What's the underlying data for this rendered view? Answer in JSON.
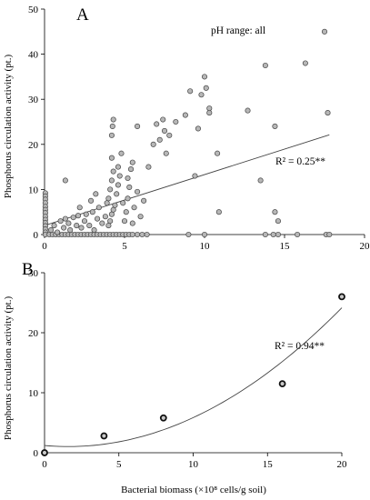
{
  "chart_data": [
    {
      "type": "scatter",
      "panel_label": "A",
      "annotation": "pH range: all",
      "r2_label": "R² = 0.25**",
      "ylabel": "Phosphorus circulation activity (pt.)",
      "xlabel": "",
      "xlim": [
        0,
        20
      ],
      "ylim": [
        0,
        50
      ],
      "xticks": [
        0,
        5,
        10,
        15,
        20
      ],
      "yticks": [
        0,
        10,
        20,
        30,
        40,
        50
      ],
      "xtick_labels": [
        "0",
        "5",
        "10",
        "15",
        "20"
      ],
      "ytick_labels": [
        "0",
        "10",
        "20",
        "30",
        "40",
        "50"
      ],
      "fit": {
        "kind": "linear",
        "intercept": 2.0,
        "slope": 1.13,
        "x_range": [
          0,
          17.8
        ]
      },
      "points": [
        [
          0.05,
          9.2
        ],
        [
          0.05,
          8.5
        ],
        [
          0.05,
          7.8
        ],
        [
          0.05,
          7.0
        ],
        [
          0.05,
          6.2
        ],
        [
          0.05,
          5.5
        ],
        [
          0.05,
          4.8
        ],
        [
          0.05,
          4.0
        ],
        [
          0.05,
          3.3
        ],
        [
          0.05,
          2.6
        ],
        [
          0.05,
          1.9
        ],
        [
          0.05,
          1.2
        ],
        [
          0.05,
          0.5
        ],
        [
          0.05,
          0.0
        ],
        [
          0.3,
          0
        ],
        [
          0.5,
          0
        ],
        [
          0.7,
          0
        ],
        [
          0.9,
          0
        ],
        [
          1.1,
          0
        ],
        [
          1.3,
          0
        ],
        [
          1.5,
          0
        ],
        [
          1.7,
          0
        ],
        [
          1.9,
          0
        ],
        [
          2.1,
          0
        ],
        [
          2.3,
          0
        ],
        [
          2.5,
          0
        ],
        [
          2.7,
          0
        ],
        [
          2.9,
          0
        ],
        [
          3.1,
          0
        ],
        [
          3.3,
          0
        ],
        [
          3.5,
          0
        ],
        [
          3.7,
          0
        ],
        [
          3.9,
          0
        ],
        [
          4.1,
          0
        ],
        [
          4.3,
          0
        ],
        [
          4.5,
          0
        ],
        [
          4.7,
          0
        ],
        [
          4.9,
          0
        ],
        [
          5.1,
          0
        ],
        [
          5.3,
          0
        ],
        [
          5.5,
          0
        ],
        [
          5.8,
          0
        ],
        [
          6.1,
          0
        ],
        [
          6.4,
          0
        ],
        [
          9.0,
          0
        ],
        [
          10.0,
          0
        ],
        [
          13.8,
          0
        ],
        [
          14.3,
          0
        ],
        [
          14.6,
          0
        ],
        [
          15.8,
          0
        ],
        [
          17.6,
          0
        ],
        [
          17.8,
          0
        ],
        [
          0.4,
          1.0
        ],
        [
          0.6,
          2.0
        ],
        [
          0.8,
          0.5
        ],
        [
          1.0,
          3.0
        ],
        [
          1.2,
          1.5
        ],
        [
          1.3,
          3.5
        ],
        [
          1.5,
          2.5
        ],
        [
          1.6,
          1.0
        ],
        [
          1.8,
          3.8
        ],
        [
          2.0,
          2.0
        ],
        [
          2.1,
          4.2
        ],
        [
          2.3,
          1.5
        ],
        [
          2.5,
          3.0
        ],
        [
          2.6,
          4.5
        ],
        [
          2.8,
          2.0
        ],
        [
          3.0,
          5.0
        ],
        [
          3.1,
          1.0
        ],
        [
          3.3,
          3.5
        ],
        [
          3.4,
          6.0
        ],
        [
          3.6,
          2.5
        ],
        [
          3.8,
          4.0
        ],
        [
          3.9,
          7.0
        ],
        [
          1.3,
          12.0
        ],
        [
          2.2,
          6.0
        ],
        [
          3.2,
          9.0
        ],
        [
          2.9,
          7.5
        ],
        [
          4.0,
          8.0
        ],
        [
          4.1,
          10.0
        ],
        [
          4.2,
          12.0
        ],
        [
          4.3,
          14.0
        ],
        [
          4.2,
          17.0
        ],
        [
          4.2,
          22.0
        ],
        [
          4.25,
          24.0
        ],
        [
          4.3,
          25.5
        ],
        [
          4.0,
          2.0
        ],
        [
          4.1,
          3.0
        ],
        [
          4.2,
          4.5
        ],
        [
          4.3,
          5.5
        ],
        [
          4.4,
          6.5
        ],
        [
          4.5,
          9.0
        ],
        [
          4.6,
          11.0
        ],
        [
          4.7,
          13.0
        ],
        [
          4.6,
          15.0
        ],
        [
          4.8,
          18.0
        ],
        [
          4.9,
          7.0
        ],
        [
          5.0,
          3.0
        ],
        [
          5.1,
          5.0
        ],
        [
          5.2,
          8.0
        ],
        [
          5.3,
          10.5
        ],
        [
          5.2,
          12.5
        ],
        [
          5.4,
          14.5
        ],
        [
          5.5,
          2.5
        ],
        [
          5.6,
          6.0
        ],
        [
          5.8,
          9.5
        ],
        [
          6.0,
          4.0
        ],
        [
          6.2,
          7.5
        ],
        [
          5.5,
          16.0
        ],
        [
          5.8,
          24.0
        ],
        [
          6.5,
          15.0
        ],
        [
          6.8,
          20.0
        ],
        [
          7.0,
          24.5
        ],
        [
          7.2,
          21.0
        ],
        [
          7.4,
          25.5
        ],
        [
          7.5,
          23.0
        ],
        [
          7.6,
          18.0
        ],
        [
          7.8,
          22.0
        ],
        [
          8.2,
          25.0
        ],
        [
          8.8,
          26.5
        ],
        [
          9.1,
          31.8
        ],
        [
          9.4,
          13.0
        ],
        [
          9.6,
          23.5
        ],
        [
          9.8,
          31.0
        ],
        [
          10.0,
          35.0
        ],
        [
          10.1,
          32.5
        ],
        [
          10.3,
          27.0
        ],
        [
          10.3,
          28.0
        ],
        [
          10.9,
          5.0
        ],
        [
          10.8,
          18.0
        ],
        [
          12.7,
          27.5
        ],
        [
          13.5,
          12.0
        ],
        [
          13.8,
          37.5
        ],
        [
          14.4,
          24.0
        ],
        [
          14.4,
          5.0
        ],
        [
          14.6,
          3.0
        ],
        [
          16.3,
          38.0
        ],
        [
          17.5,
          45.0
        ],
        [
          17.7,
          27.0
        ]
      ]
    },
    {
      "type": "scatter",
      "panel_label": "B",
      "r2_label": "R² = 0.94**",
      "ylabel": "Phosphorus circulation activity (pt.)",
      "xlabel": "Bacterial biomass (×10⁸ cells/g soil)",
      "xlim": [
        0,
        20
      ],
      "ylim": [
        0,
        30
      ],
      "xticks": [
        0,
        5,
        10,
        15,
        20
      ],
      "yticks": [
        0,
        10,
        20,
        30
      ],
      "xtick_labels": [
        "0",
        "5",
        "10",
        "15",
        "20"
      ],
      "ytick_labels": [
        "0",
        "10",
        "20",
        "30"
      ],
      "fit": {
        "kind": "quadratic",
        "a": 0.0683,
        "b": -0.218,
        "c": 1.2,
        "x_range": [
          0,
          20
        ]
      },
      "points": [
        [
          0,
          0
        ],
        [
          4,
          2.8
        ],
        [
          8,
          5.8
        ],
        [
          16,
          11.5
        ],
        [
          20,
          26.0
        ]
      ]
    }
  ]
}
